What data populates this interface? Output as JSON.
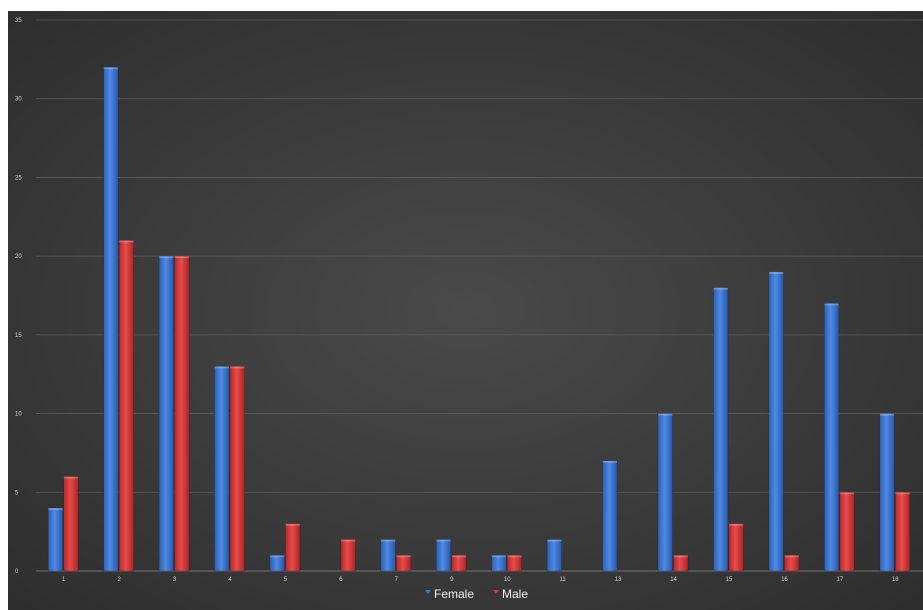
{
  "chart_data": {
    "type": "bar",
    "categories": [
      "1",
      "2",
      "3",
      "4",
      "5",
      "6",
      "7",
      "9",
      "10",
      "11",
      "13",
      "14",
      "15",
      "16",
      "17",
      "18"
    ],
    "series": [
      {
        "name": "Female",
        "color": "#3a78d6",
        "values": [
          4,
          32,
          20,
          13,
          1,
          0,
          2,
          2,
          1,
          2,
          7,
          10,
          18,
          19,
          17,
          10
        ]
      },
      {
        "name": "Male",
        "color": "#d93838",
        "values": [
          6,
          21,
          20,
          13,
          3,
          2,
          1,
          1,
          1,
          0,
          0,
          1,
          3,
          1,
          5,
          5
        ]
      }
    ],
    "y_ticks": [
      "0",
      "5",
      "10",
      "15",
      "20",
      "25",
      "30",
      "35"
    ],
    "ylim": [
      0,
      35
    ],
    "grid": true,
    "legend": "bottom-center",
    "background": "#3d3d3d"
  }
}
